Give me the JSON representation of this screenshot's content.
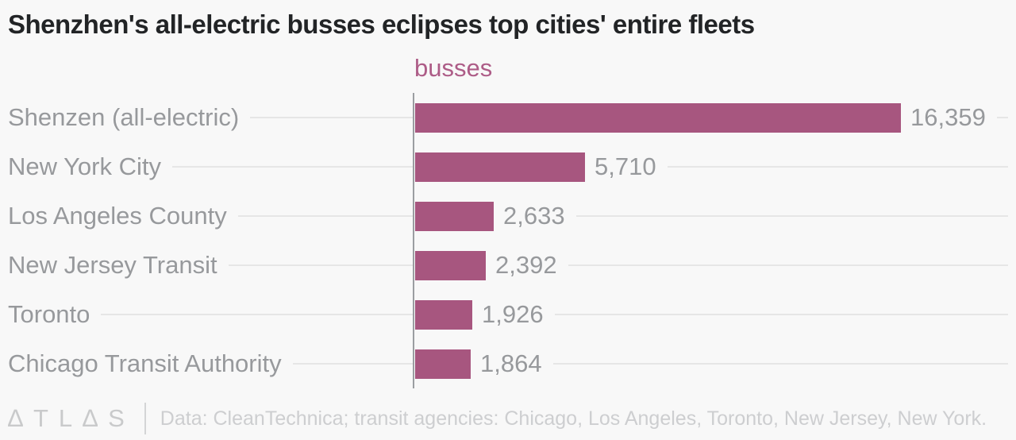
{
  "title": "Shenzhen's all-electric busses eclipses top cities' entire fleets",
  "chart_data": {
    "type": "bar",
    "orientation": "horizontal",
    "series_label": "busses",
    "categories": [
      "Shenzen (all-electric)",
      "New York City",
      "Los Angeles County",
      "New Jersey Transit",
      "Toronto",
      "Chicago Transit Authority"
    ],
    "values": [
      16359,
      5710,
      2633,
      2392,
      1926,
      1864
    ],
    "value_labels": [
      "16,359",
      "5,710",
      "2,633",
      "2,392",
      "1,926",
      "1,864"
    ],
    "xlim": [
      0,
      16359
    ],
    "grid": "off",
    "legend": "none",
    "bar_color": "#a7567f",
    "series_label_color": "#ad5c87",
    "axis_color": "#9b9ea1",
    "label_color": "#97999c",
    "leader_line_color": "#e6e6e6"
  },
  "footer": {
    "logo_text": "∆TL∆S",
    "source": "Data: CleanTechnica; transit agencies: Chicago, Los Angeles, Toronto, New Jersey, New York."
  }
}
